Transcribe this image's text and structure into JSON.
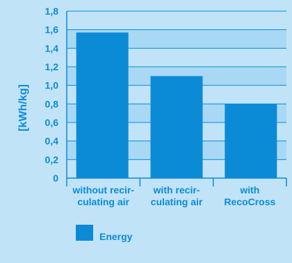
{
  "chart_data": {
    "type": "bar",
    "categories": [
      [
        "without recir-",
        "culating air"
      ],
      [
        "with recir-",
        "culating air"
      ],
      [
        "with",
        "RecoCross"
      ]
    ],
    "series": [
      {
        "name": "Energy",
        "values": [
          1.57,
          1.1,
          0.8
        ]
      }
    ],
    "ylabel": "[kWh/kg]",
    "ylim": [
      0,
      1.8
    ],
    "yticks": [
      "0",
      "0,2",
      "0,4",
      "0,6",
      "0,8",
      "1,0",
      "1,2",
      "1,4",
      "1,6",
      "1,8"
    ],
    "grid": true,
    "legend": "bottom-left",
    "colors": {
      "background": "#c1e3f8",
      "band_light": "#c1e3f8",
      "band_dark": "#a9d8f5",
      "bar": "#0b8bd6",
      "text": "#0b8bd6",
      "grid": "#0b8bd6"
    }
  }
}
